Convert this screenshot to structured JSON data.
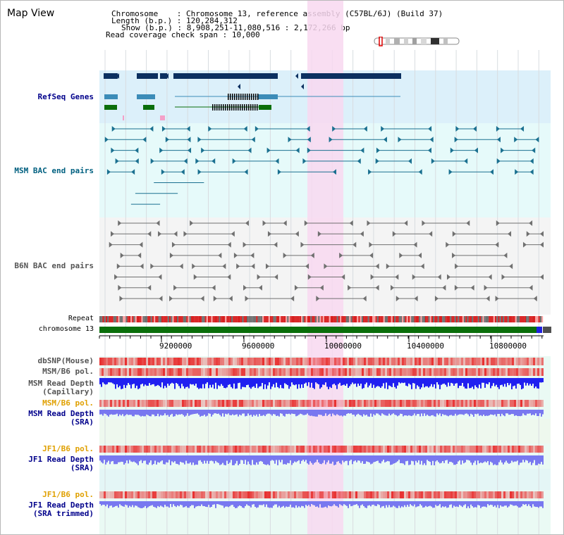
{
  "header": {
    "title": "Map View",
    "chromosome_label": "Chromosome",
    "chromosome_value": "Chromosome 13, reference assembly (C57BL/6J) (Build 37)",
    "length_label": "Length (b.p.)",
    "length_value": "120,284,312",
    "show_label": "Show (b.p.)",
    "show_value": "8,908,251-11,080,516 : 2,172,266 bp",
    "coverage_label": "Read coverage check span",
    "coverage_value": "10,000",
    "separator": ":"
  },
  "tracks": {
    "refseq": "RefSeq Genes",
    "msm_bac": "MSM BAC end pairs",
    "b6n_bac": "B6N BAC end pairs",
    "repeat": "Repeat",
    "chromosome": "chromosome 13",
    "dbsnp": "dbSNP(Mouse)",
    "msm_b6_pol_1": "MSM/B6 pol.",
    "msm_read_depth_cap_1": "MSM Read Depth",
    "msm_read_depth_cap_2": "(Capillary)",
    "msm_b6_pol_2": "MSM/B6 pol.",
    "msm_read_depth_sra_1": "MSM Read Depth",
    "msm_read_depth_sra_2": "(SRA)",
    "jf1_b6_pol_1": "JF1/B6 pol.",
    "jf1_read_depth_sra_1": "JF1 Read Depth",
    "jf1_read_depth_sra_2": "(SRA)",
    "jf1_b6_pol_2": "JF1/B6 pol.",
    "jf1_read_depth_trim_1": "JF1 Read Depth",
    "jf1_read_depth_trim_2": "(SRA trimmed)"
  },
  "axis": {
    "ticks": [
      "9200000",
      "9600000",
      "10000000",
      "10400000",
      "10800000"
    ]
  },
  "colors": {
    "refseq_bg": "#dcf0fa",
    "msm_bg": "#e6fafa",
    "b6n_bg": "#f4f4f4",
    "highlight": "#f8d8f0",
    "gene_dark": "#0c3060",
    "gene_mid": "#3c8cb8",
    "gene_green": "#0a6e0a",
    "msm_pair": "#1a7090",
    "b6n_pair": "#707070",
    "chrom_bar": "#0a6e0a",
    "pol_red": "#e83030",
    "depth_blue": "#2020f0",
    "depth_light": "#7878f0"
  }
}
